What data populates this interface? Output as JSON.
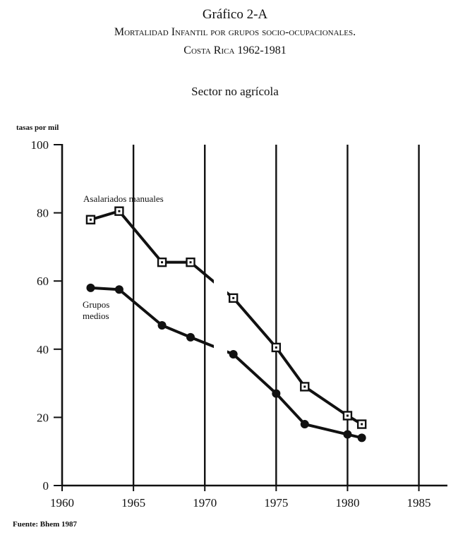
{
  "header": {
    "figure_label": "Gráfico 2-A",
    "title": "Mortalidad Infantil por grupos socio-ocupacionales.",
    "subtitle": "Costa Rica 1962-1981",
    "panel_title": "Sector no agrícola"
  },
  "footer": {
    "source": "Fuente: Bhem 1987"
  },
  "chart_data": {
    "type": "line",
    "title": "Sector no agrícola",
    "ylabel": "tasas por mil",
    "xlabel": "",
    "xlim": [
      1960,
      1987
    ],
    "ylim": [
      0,
      100
    ],
    "x_ticks": [
      1960,
      1965,
      1970,
      1975,
      1980,
      1985
    ],
    "y_ticks": [
      0,
      20,
      40,
      60,
      80,
      100
    ],
    "grid": "vertical lines at 1965, 1970, 1975, 1980, 1985",
    "line_color": "#111111",
    "series": [
      {
        "name": "Asalariados manuales",
        "marker": "square",
        "x": [
          1962,
          1964,
          1967,
          1969,
          1972,
          1975,
          1977,
          1980,
          1981
        ],
        "y": [
          78,
          80.5,
          65.5,
          65.5,
          55,
          40.5,
          29,
          20.5,
          18
        ]
      },
      {
        "name": "Grupos medios",
        "marker": "circle",
        "x": [
          1962,
          1964,
          1967,
          1969,
          1972,
          1975,
          1977,
          1980,
          1981
        ],
        "y": [
          58,
          57.5,
          47,
          43.5,
          38.5,
          27,
          18,
          15,
          14
        ]
      }
    ],
    "annotations": [
      {
        "text": "Asalariados manuales",
        "series": 0
      },
      {
        "text": "Grupos medios",
        "series": 1
      }
    ]
  }
}
